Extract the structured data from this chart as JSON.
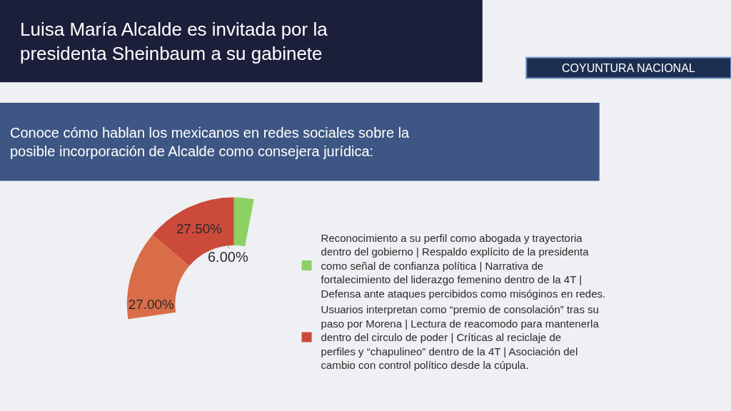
{
  "chart_data": {
    "type": "donut",
    "title": "Luisa María Alcalde es invitada por la presidenta Sheinbaum a su gabinete",
    "subtitle": "Conoce cómo hablan los mexicanos en redes sociales sobre la posible incorporación de Alcalde como consejera jurídica:",
    "annotations": [
      "COYUNTURA NACIONAL"
    ],
    "categories": [
      "Reconocimiento a su perfil como abogada y trayectoria dentro del gobierno | Respaldo explícito de la presidenta como señal de confianza política | Narrativa de fortalecimiento del liderazgo femenino dentro de la 4T | Defensa ante ataques percibidos como misóginos en redes.",
      "Usuarios interpretan como “premio de consolación” tras su paso por Morena | Lectura de reacomodo para mantenerla dentro del circulo de poder | Críticas al reciclaje de perfiles y “chapulineo” dentro de la 4T | Asociación del cambio con control político desde la cúpula.",
      null
    ],
    "values": [
      6,
      27.5,
      27
    ],
    "value_labels": [
      "6.00%",
      "27.50%",
      "27.00%"
    ],
    "colors": [
      "#8dd164",
      "#cc4a3a",
      "#d86d48"
    ],
    "legend": "right"
  }
}
